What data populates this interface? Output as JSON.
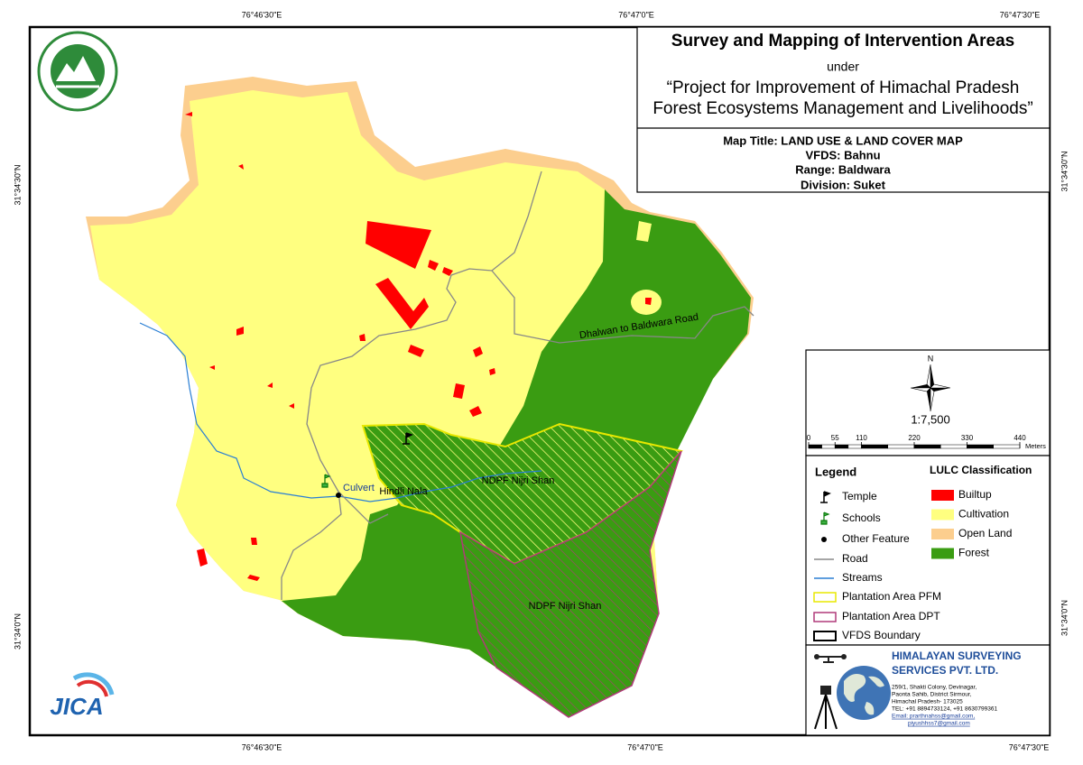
{
  "coordinates": {
    "top": [
      "76°46'30\"E",
      "76°47'0\"E",
      "76°47'30\"E"
    ],
    "bottom": [
      "76°46'30\"E",
      "76°47'0\"E",
      "76°47'30\"E"
    ],
    "left": [
      "31°34'30\"N",
      "31°34'0\"N"
    ],
    "right": [
      "31°34'30\"N",
      "31°34'0\"N"
    ]
  },
  "header": {
    "title": "Survey and Mapping of Intervention Areas",
    "under": "under",
    "project_line1": "“Project for Improvement of Himachal Pradesh",
    "project_line2": "Forest Ecosystems Management and Livelihoods”"
  },
  "map_info": {
    "map_title": "Map Title: LAND USE & LAND COVER MAP",
    "vfds": "VFDS: Bahnu",
    "range": "Range: Baldwara",
    "division": "Division: Suket"
  },
  "north": "N",
  "scale": "1:7,500",
  "scale_bar": {
    "ticks": [
      0,
      55,
      110,
      220,
      330,
      440
    ],
    "unit": "Meters"
  },
  "legend": {
    "title": "Legend",
    "items": [
      "Temple",
      "Schools",
      "Other Feature",
      "Road",
      "Streams",
      "Plantation Area PFM",
      "Plantation Area DPT",
      "VFDS Boundary"
    ]
  },
  "lulc": {
    "title": "LULC Classification",
    "classes": [
      {
        "label": "Builtup",
        "color": "#ff0000"
      },
      {
        "label": "Cultivation",
        "color": "#ffff80"
      },
      {
        "label": "Open Land",
        "color": "#fcce8e"
      },
      {
        "label": "Forest",
        "color": "#3a9c12"
      }
    ]
  },
  "map_labels": [
    "Dhalwan to Baldwara Road",
    "Hindli Nala",
    "Culvert",
    "NDPF Nijri Shan",
    "NDPF Nijri Shan"
  ],
  "company": {
    "name_line1": "HIMALAYAN SURVEYING",
    "name_line2": "SERVICES PVT. LTD.",
    "address": [
      "259/1, Shakti Colony, Devinagar,",
      "Paonta Sahib, District Sirmour,",
      "Himachal Pradesh- 173025",
      "TEL: +91 8894733124, +91 8630799361",
      "Email: prarthnahss@gmail.com,",
      "piyushhss7@gmail.com"
    ]
  },
  "logo": "JICA"
}
